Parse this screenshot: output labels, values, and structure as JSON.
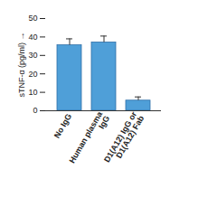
{
  "chart_data": {
    "type": "bar",
    "categories": [
      "No IgG",
      "Human plasma IgG",
      "D1(A12) IgG or D1(A12) Fab"
    ],
    "values": [
      35.5,
      37,
      5.5
    ],
    "errors": [
      3.5,
      3.5,
      2
    ],
    "color": "#4f9fd8",
    "y_label": "sTNF-α (pg/ml)",
    "ylim": [
      0,
      50
    ],
    "yticks": [
      0,
      10,
      20,
      30,
      40,
      50
    ],
    "grid": false
  }
}
